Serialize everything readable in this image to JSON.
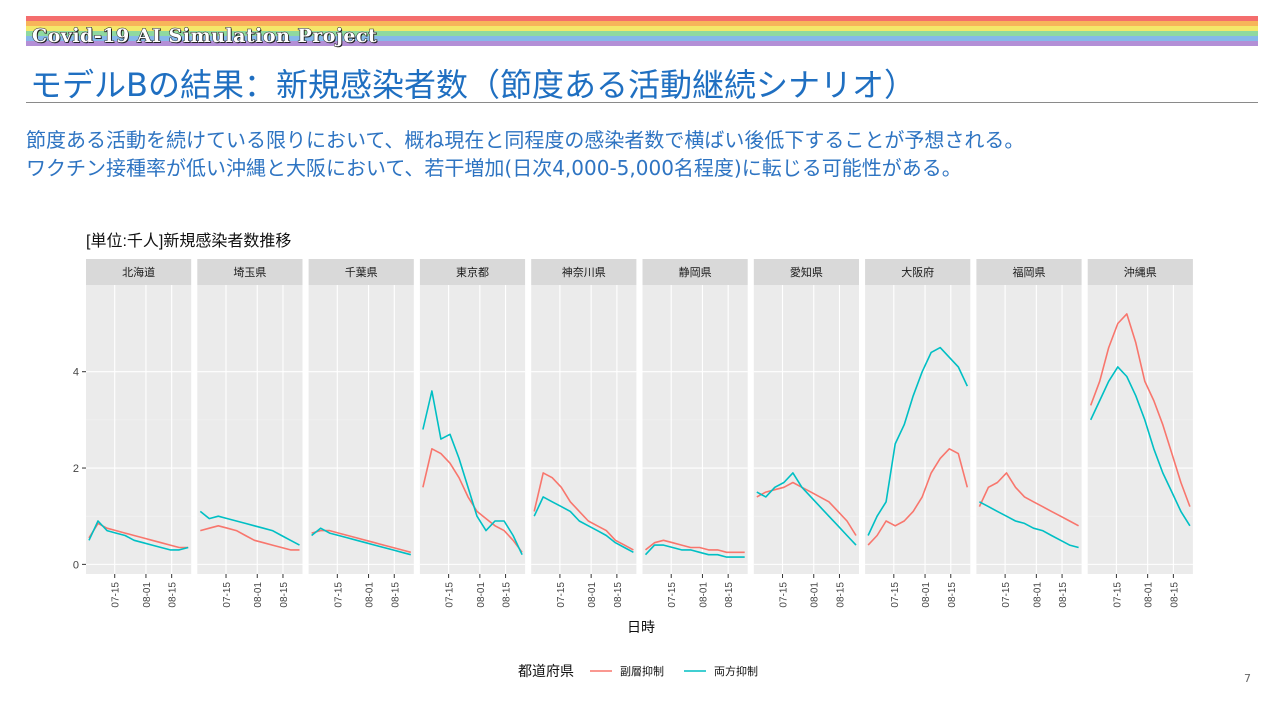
{
  "header": {
    "project_title": "Covid-19 AI Simulation Project",
    "slide_title": "モデルBの結果：新規感染者数（節度ある活動継続シナリオ）",
    "rainbow_colors": [
      "#f46d6d",
      "#f7b55a",
      "#f4e86a",
      "#8fd9a0",
      "#86b8ea",
      "#b38fd6"
    ]
  },
  "summary": {
    "line1": "節度ある活動を続けている限りにおいて、概ね現在と同程度の感染者数で横ばい後低下することが予想される。",
    "line2": "ワクチン接種率が低い沖縄と大阪において、若干増加(日次4,000-5,000名程度)に転じる可能性がある。"
  },
  "chart_data": {
    "type": "line",
    "title": "[単位:千人]新規感染者数推移",
    "xlabel": "日時",
    "ylabel": "",
    "x_ticks": [
      "07-15",
      "08-01",
      "08-15"
    ],
    "x_tick_dates": [
      "2021-07-15",
      "2021-08-01",
      "2021-08-15"
    ],
    "x_range": [
      "2021-07-01",
      "2021-08-24"
    ],
    "y_ticks": [
      0,
      2,
      4
    ],
    "ylim": [
      -0.2,
      5.8
    ],
    "grid": true,
    "legend_title": "都道府県",
    "legend_position": "bottom",
    "series_colors": {
      "副層抑制": "#f8766d",
      "両方抑制": "#00bfc4"
    },
    "panels": [
      {
        "name": "北海道",
        "series": [
          {
            "name": "副層抑制",
            "values": [
              0.55,
              0.85,
              0.75,
              0.7,
              0.65,
              0.6,
              0.55,
              0.5,
              0.45,
              0.4,
              0.35,
              0.35
            ]
          },
          {
            "name": "両方抑制",
            "values": [
              0.5,
              0.9,
              0.7,
              0.65,
              0.6,
              0.5,
              0.45,
              0.4,
              0.35,
              0.3,
              0.3,
              0.35
            ]
          }
        ]
      },
      {
        "name": "埼玉県",
        "series": [
          {
            "name": "副層抑制",
            "values": [
              0.7,
              0.75,
              0.8,
              0.75,
              0.7,
              0.6,
              0.5,
              0.45,
              0.4,
              0.35,
              0.3,
              0.3
            ]
          },
          {
            "name": "両方抑制",
            "values": [
              1.1,
              0.95,
              1.0,
              0.95,
              0.9,
              0.85,
              0.8,
              0.75,
              0.7,
              0.6,
              0.5,
              0.4
            ]
          }
        ]
      },
      {
        "name": "千葉県",
        "series": [
          {
            "name": "副層抑制",
            "values": [
              0.65,
              0.7,
              0.7,
              0.65,
              0.6,
              0.55,
              0.5,
              0.45,
              0.4,
              0.35,
              0.3,
              0.25
            ]
          },
          {
            "name": "両方抑制",
            "values": [
              0.6,
              0.75,
              0.65,
              0.6,
              0.55,
              0.5,
              0.45,
              0.4,
              0.35,
              0.3,
              0.25,
              0.2
            ]
          }
        ]
      },
      {
        "name": "東京都",
        "series": [
          {
            "name": "副層抑制",
            "values": [
              1.6,
              2.4,
              2.3,
              2.1,
              1.8,
              1.4,
              1.1,
              0.95,
              0.8,
              0.7,
              0.5,
              0.25
            ]
          },
          {
            "name": "両方抑制",
            "values": [
              2.8,
              3.6,
              2.6,
              2.7,
              2.2,
              1.6,
              1.0,
              0.7,
              0.9,
              0.9,
              0.6,
              0.2
            ]
          }
        ]
      },
      {
        "name": "神奈川県",
        "series": [
          {
            "name": "副層抑制",
            "values": [
              1.1,
              1.9,
              1.8,
              1.6,
              1.3,
              1.1,
              0.9,
              0.8,
              0.7,
              0.5,
              0.4,
              0.3
            ]
          },
          {
            "name": "両方抑制",
            "values": [
              1.0,
              1.4,
              1.3,
              1.2,
              1.1,
              0.9,
              0.8,
              0.7,
              0.6,
              0.45,
              0.35,
              0.25
            ]
          }
        ]
      },
      {
        "name": "静岡県",
        "series": [
          {
            "name": "副層抑制",
            "values": [
              0.3,
              0.45,
              0.5,
              0.45,
              0.4,
              0.35,
              0.35,
              0.3,
              0.3,
              0.25,
              0.25,
              0.25
            ]
          },
          {
            "name": "両方抑制",
            "values": [
              0.2,
              0.4,
              0.4,
              0.35,
              0.3,
              0.3,
              0.25,
              0.2,
              0.2,
              0.15,
              0.15,
              0.15
            ]
          }
        ]
      },
      {
        "name": "愛知県",
        "series": [
          {
            "name": "副層抑制",
            "values": [
              1.4,
              1.5,
              1.55,
              1.6,
              1.7,
              1.6,
              1.5,
              1.4,
              1.3,
              1.1,
              0.9,
              0.6
            ]
          },
          {
            "name": "両方抑制",
            "values": [
              1.5,
              1.4,
              1.6,
              1.7,
              1.9,
              1.6,
              1.4,
              1.2,
              1.0,
              0.8,
              0.6,
              0.4
            ]
          }
        ]
      },
      {
        "name": "大阪府",
        "series": [
          {
            "name": "副層抑制",
            "values": [
              0.4,
              0.6,
              0.9,
              0.8,
              0.9,
              1.1,
              1.4,
              1.9,
              2.2,
              2.4,
              2.3,
              1.6
            ]
          },
          {
            "name": "両方抑制",
            "values": [
              0.6,
              1.0,
              1.3,
              2.5,
              2.9,
              3.5,
              4.0,
              4.4,
              4.5,
              4.3,
              4.1,
              3.7
            ]
          }
        ]
      },
      {
        "name": "福岡県",
        "series": [
          {
            "name": "副層抑制",
            "values": [
              1.2,
              1.6,
              1.7,
              1.9,
              1.6,
              1.4,
              1.3,
              1.2,
              1.1,
              1.0,
              0.9,
              0.8
            ]
          },
          {
            "name": "両方抑制",
            "values": [
              1.3,
              1.2,
              1.1,
              1.0,
              0.9,
              0.85,
              0.75,
              0.7,
              0.6,
              0.5,
              0.4,
              0.35
            ]
          }
        ]
      },
      {
        "name": "沖縄県",
        "series": [
          {
            "name": "副層抑制",
            "values": [
              3.3,
              3.8,
              4.5,
              5.0,
              5.2,
              4.6,
              3.8,
              3.4,
              2.9,
              2.3,
              1.7,
              1.2
            ]
          },
          {
            "name": "両方抑制",
            "values": [
              3.0,
              3.4,
              3.8,
              4.1,
              3.9,
              3.5,
              3.0,
              2.4,
              1.9,
              1.5,
              1.1,
              0.8
            ]
          }
        ]
      }
    ]
  },
  "page_number": "7"
}
